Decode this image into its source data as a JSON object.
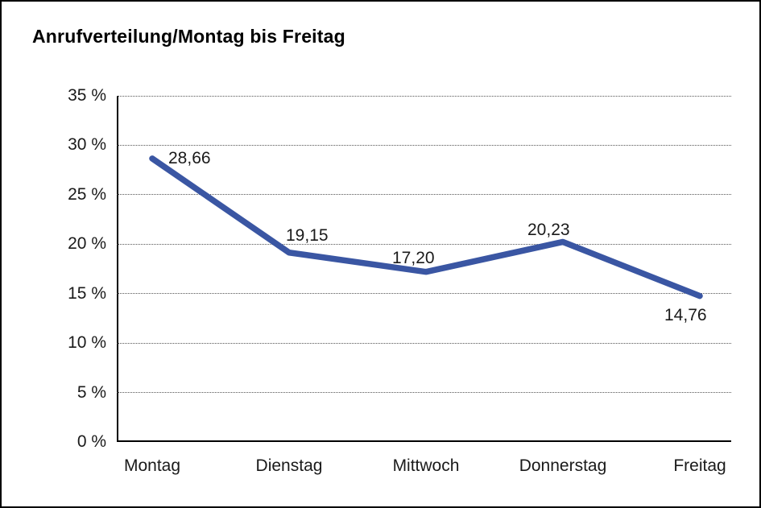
{
  "page": {
    "title": "Anrufverteilung/Montag bis Freitag"
  },
  "chart_data": {
    "type": "line",
    "title": "Anrufverteilung/Montag bis Freitag",
    "categories": [
      "Montag",
      "Dienstag",
      "Mittwoch",
      "Donnerstag",
      "Freitag"
    ],
    "values": [
      28.66,
      19.15,
      17.2,
      20.23,
      14.76
    ],
    "value_labels": [
      "28,66",
      "19,15",
      "17,20",
      "20,23",
      "14,76"
    ],
    "ylim": [
      0,
      35
    ],
    "ytick_step": 5,
    "ytick_labels": [
      "0 %",
      "5 %",
      "10 %",
      "15 %",
      "20 %",
      "25 %",
      "30 %",
      "35 %"
    ],
    "xlabel": "",
    "ylabel": "",
    "grid": "horizontal-dotted",
    "legend": "none",
    "line_color": "#3A56A3",
    "label_color": "#1a1a1a",
    "axis_color": "#000000"
  }
}
